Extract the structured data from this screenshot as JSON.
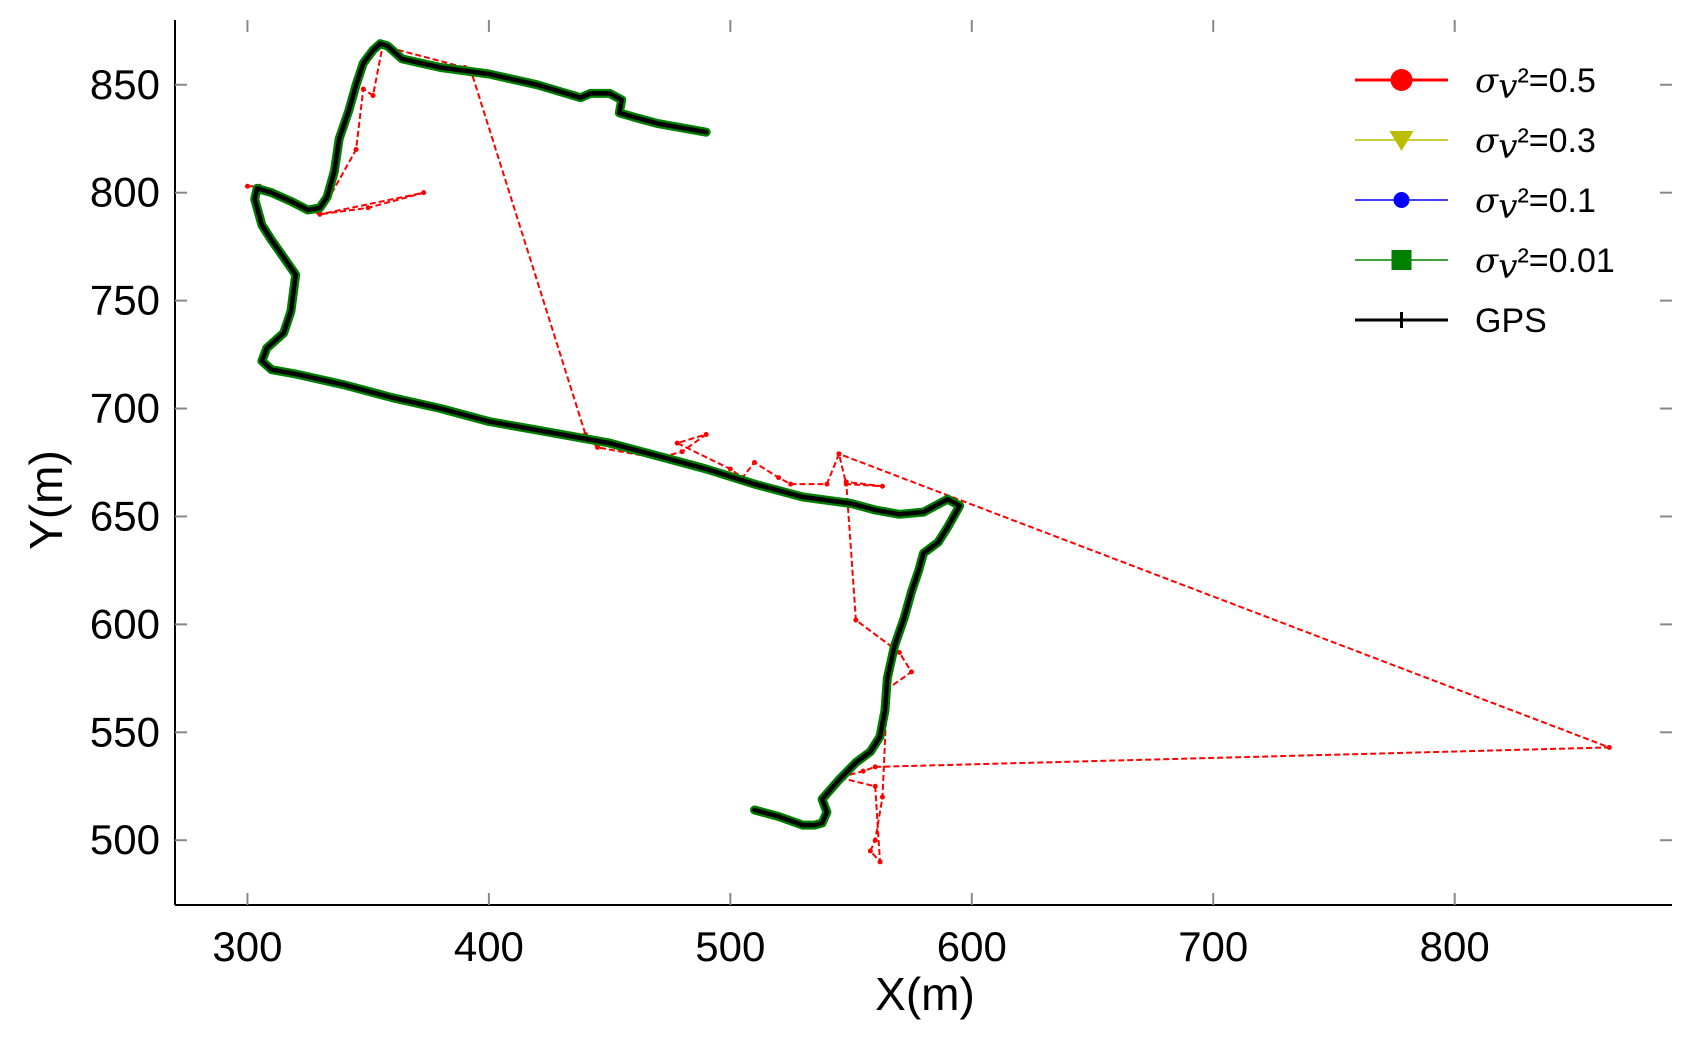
{
  "chart_data": {
    "type": "line",
    "xlabel": "X(m)",
    "ylabel": "Y(m)",
    "xlim": [
      270,
      890
    ],
    "ylim": [
      470,
      880
    ],
    "xticks": [
      300,
      400,
      500,
      600,
      700,
      800
    ],
    "yticks": [
      500,
      550,
      600,
      650,
      700,
      750,
      800,
      850
    ],
    "grid": false,
    "legend_position": "top-right",
    "series": [
      {
        "name": "σv²=0.5",
        "name_symbol": "σ",
        "name_sub": "v",
        "name_rest": "²=0.5",
        "color": "#ff0000",
        "marker": "circle",
        "points": [
          [
            300,
            803
          ],
          [
            305,
            803
          ],
          [
            310,
            800
          ],
          [
            320,
            795
          ],
          [
            330,
            790
          ],
          [
            350,
            793
          ],
          [
            373,
            800
          ],
          [
            330,
            790
          ],
          [
            345,
            820
          ],
          [
            348,
            848
          ],
          [
            352,
            845
          ],
          [
            356,
            868
          ],
          [
            390,
            858
          ],
          [
            393,
            855
          ],
          [
            440,
            688
          ],
          [
            445,
            682
          ],
          [
            470,
            677
          ],
          [
            480,
            680
          ],
          [
            490,
            688
          ],
          [
            478,
            684
          ],
          [
            500,
            672
          ],
          [
            505,
            668
          ],
          [
            510,
            675
          ],
          [
            520,
            668
          ],
          [
            525,
            665
          ],
          [
            540,
            665
          ],
          [
            545,
            679
          ],
          [
            548,
            665
          ],
          [
            563,
            664
          ],
          [
            548,
            666
          ],
          [
            552,
            602
          ],
          [
            570,
            587
          ],
          [
            575,
            578
          ],
          [
            565,
            570
          ],
          [
            563,
            520
          ],
          [
            560,
            500
          ],
          [
            558,
            495
          ],
          [
            562,
            490
          ],
          [
            560,
            525
          ],
          [
            545,
            529
          ],
          [
            555,
            532
          ],
          [
            560,
            534
          ],
          [
            864,
            543
          ],
          [
            545,
            679
          ]
        ]
      },
      {
        "name": "σv²=0.3",
        "name_symbol": "σ",
        "name_sub": "v",
        "name_rest": "²=0.3",
        "color": "#bcbc00",
        "marker": "triangle-down",
        "points": []
      },
      {
        "name": "σv²=0.1",
        "name_symbol": "σ",
        "name_sub": "v",
        "name_rest": "²=0.1",
        "color": "#0000ff",
        "marker": "circle",
        "points": []
      },
      {
        "name": "σv²=0.01",
        "name_symbol": "σ",
        "name_sub": "v",
        "name_rest": "²=0.01",
        "color": "#008000",
        "marker": "square",
        "points": [
          [
            510,
            514
          ],
          [
            520,
            511
          ],
          [
            530,
            507
          ],
          [
            535,
            507
          ],
          [
            538,
            508
          ],
          [
            540,
            513
          ],
          [
            538,
            519
          ],
          [
            545,
            528
          ],
          [
            552,
            536
          ],
          [
            558,
            541
          ],
          [
            562,
            548
          ],
          [
            564,
            560
          ],
          [
            565,
            575
          ],
          [
            568,
            590
          ],
          [
            572,
            603
          ],
          [
            575,
            615
          ],
          [
            578,
            625
          ],
          [
            580,
            633
          ],
          [
            586,
            638
          ],
          [
            590,
            645
          ],
          [
            595,
            655
          ],
          [
            590,
            658
          ],
          [
            580,
            652
          ],
          [
            570,
            651
          ],
          [
            560,
            653
          ],
          [
            550,
            656
          ],
          [
            530,
            659
          ],
          [
            510,
            665
          ],
          [
            490,
            672
          ],
          [
            470,
            678
          ],
          [
            450,
            684
          ],
          [
            420,
            690
          ],
          [
            400,
            694
          ],
          [
            380,
            700
          ],
          [
            360,
            705
          ],
          [
            340,
            711
          ],
          [
            320,
            716
          ],
          [
            310,
            718
          ],
          [
            306,
            722
          ],
          [
            308,
            728
          ],
          [
            315,
            735
          ],
          [
            318,
            745
          ],
          [
            320,
            762
          ],
          [
            315,
            770
          ],
          [
            310,
            778
          ],
          [
            306,
            785
          ],
          [
            303,
            797
          ],
          [
            304,
            802
          ],
          [
            310,
            800
          ],
          [
            318,
            796
          ],
          [
            325,
            792
          ],
          [
            330,
            793
          ],
          [
            333,
            798
          ],
          [
            336,
            810
          ],
          [
            338,
            825
          ],
          [
            342,
            838
          ],
          [
            345,
            850
          ],
          [
            348,
            860
          ],
          [
            352,
            866
          ],
          [
            355,
            869
          ],
          [
            358,
            868
          ],
          [
            364,
            862
          ],
          [
            380,
            858
          ],
          [
            400,
            855
          ],
          [
            420,
            850
          ],
          [
            438,
            844
          ],
          [
            442,
            846
          ],
          [
            450,
            846
          ],
          [
            455,
            843
          ],
          [
            454,
            837
          ],
          [
            460,
            835
          ],
          [
            470,
            832
          ],
          [
            490,
            828
          ]
        ]
      },
      {
        "name": "GPS",
        "color": "#000000",
        "marker": "plus",
        "points": [
          [
            510,
            514
          ],
          [
            520,
            511
          ],
          [
            530,
            507
          ],
          [
            535,
            507
          ],
          [
            538,
            508
          ],
          [
            540,
            513
          ],
          [
            538,
            519
          ],
          [
            545,
            528
          ],
          [
            552,
            536
          ],
          [
            558,
            541
          ],
          [
            562,
            548
          ],
          [
            564,
            560
          ],
          [
            565,
            575
          ],
          [
            568,
            590
          ],
          [
            572,
            603
          ],
          [
            575,
            615
          ],
          [
            578,
            625
          ],
          [
            580,
            633
          ],
          [
            586,
            638
          ],
          [
            590,
            645
          ],
          [
            595,
            655
          ],
          [
            590,
            658
          ],
          [
            580,
            652
          ],
          [
            570,
            651
          ],
          [
            560,
            653
          ],
          [
            550,
            656
          ],
          [
            530,
            659
          ],
          [
            510,
            665
          ],
          [
            490,
            672
          ],
          [
            470,
            678
          ],
          [
            450,
            684
          ],
          [
            420,
            690
          ],
          [
            400,
            694
          ],
          [
            380,
            700
          ],
          [
            360,
            705
          ],
          [
            340,
            711
          ],
          [
            320,
            716
          ],
          [
            310,
            718
          ],
          [
            306,
            722
          ],
          [
            308,
            728
          ],
          [
            315,
            735
          ],
          [
            318,
            745
          ],
          [
            320,
            762
          ],
          [
            315,
            770
          ],
          [
            310,
            778
          ],
          [
            306,
            785
          ],
          [
            303,
            797
          ],
          [
            304,
            802
          ],
          [
            310,
            800
          ],
          [
            318,
            796
          ],
          [
            325,
            792
          ],
          [
            330,
            793
          ],
          [
            333,
            798
          ],
          [
            336,
            810
          ],
          [
            338,
            825
          ],
          [
            342,
            838
          ],
          [
            345,
            850
          ],
          [
            348,
            860
          ],
          [
            352,
            866
          ],
          [
            355,
            869
          ],
          [
            358,
            868
          ],
          [
            364,
            862
          ],
          [
            380,
            858
          ],
          [
            400,
            855
          ],
          [
            420,
            850
          ],
          [
            438,
            844
          ],
          [
            442,
            846
          ],
          [
            450,
            846
          ],
          [
            455,
            843
          ],
          [
            454,
            837
          ],
          [
            460,
            835
          ],
          [
            470,
            832
          ],
          [
            490,
            828
          ]
        ]
      }
    ]
  }
}
